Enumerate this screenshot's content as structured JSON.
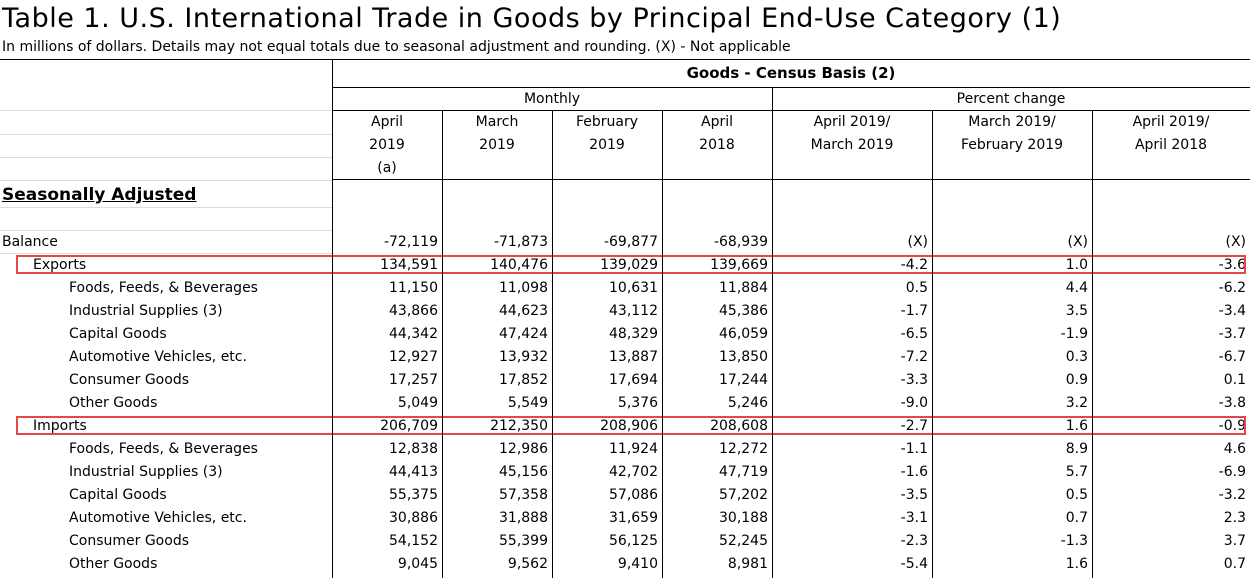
{
  "title": "Table 1. U.S. International Trade in Goods by Principal End-Use Category (1)",
  "subtitle": "In millions of dollars. Details may not equal totals due to seasonal adjustment and rounding. (X) - Not applicable",
  "header": {
    "group": "Goods - Census Basis (2)",
    "monthly": "Monthly",
    "percent_change": "Percent change",
    "columns": [
      {
        "l1": "April",
        "l2": "2019",
        "l3": "(a)"
      },
      {
        "l1": "March",
        "l2": "2019",
        "l3": ""
      },
      {
        "l1": "February",
        "l2": "2019",
        "l3": ""
      },
      {
        "l1": "April",
        "l2": "2018",
        "l3": ""
      },
      {
        "l1": "April 2019/",
        "l2": "March 2019",
        "l3": ""
      },
      {
        "l1": "March 2019/",
        "l2": "February 2019",
        "l3": ""
      },
      {
        "l1": "April 2019/",
        "l2": "April 2018",
        "l3": ""
      }
    ]
  },
  "section": "Seasonally Adjusted",
  "rows": [
    {
      "label": "Balance",
      "values": [
        "-72,119",
        "-71,873",
        "-69,877",
        "-68,939",
        "(X)",
        "(X)",
        "(X)"
      ]
    },
    {
      "label": "Exports",
      "values": [
        "134,591",
        "140,476",
        "139,029",
        "139,669",
        "-4.2",
        "1.0",
        "-3.6"
      ]
    },
    {
      "label": "Foods, Feeds, & Beverages",
      "values": [
        "11,150",
        "11,098",
        "10,631",
        "11,884",
        "0.5",
        "4.4",
        "-6.2"
      ]
    },
    {
      "label": "Industrial Supplies (3)",
      "values": [
        "43,866",
        "44,623",
        "43,112",
        "45,386",
        "-1.7",
        "3.5",
        "-3.4"
      ]
    },
    {
      "label": "Capital Goods",
      "values": [
        "44,342",
        "47,424",
        "48,329",
        "46,059",
        "-6.5",
        "-1.9",
        "-3.7"
      ]
    },
    {
      "label": "Automotive Vehicles, etc.",
      "values": [
        "12,927",
        "13,932",
        "13,887",
        "13,850",
        "-7.2",
        "0.3",
        "-6.7"
      ]
    },
    {
      "label": "Consumer Goods",
      "values": [
        "17,257",
        "17,852",
        "17,694",
        "17,244",
        "-3.3",
        "0.9",
        "0.1"
      ]
    },
    {
      "label": "Other Goods",
      "values": [
        "5,049",
        "5,549",
        "5,376",
        "5,246",
        "-9.0",
        "3.2",
        "-3.8"
      ]
    },
    {
      "label": "Imports",
      "values": [
        "206,709",
        "212,350",
        "208,906",
        "208,608",
        "-2.7",
        "1.6",
        "-0.9"
      ]
    },
    {
      "label": "Foods, Feeds, & Beverages",
      "values": [
        "12,838",
        "12,986",
        "11,924",
        "12,272",
        "-1.1",
        "8.9",
        "4.6"
      ]
    },
    {
      "label": "Industrial Supplies (3)",
      "values": [
        "44,413",
        "45,156",
        "42,702",
        "47,719",
        "-1.6",
        "5.7",
        "-6.9"
      ]
    },
    {
      "label": "Capital Goods",
      "values": [
        "55,375",
        "57,358",
        "57,086",
        "57,202",
        "-3.5",
        "0.5",
        "-3.2"
      ]
    },
    {
      "label": "Automotive Vehicles, etc.",
      "values": [
        "30,886",
        "31,888",
        "31,659",
        "30,188",
        "-3.1",
        "0.7",
        "2.3"
      ]
    },
    {
      "label": "Consumer Goods",
      "values": [
        "54,152",
        "55,399",
        "56,125",
        "52,245",
        "-2.3",
        "-1.3",
        "3.7"
      ]
    },
    {
      "label": "Other Goods",
      "values": [
        "9,045",
        "9,562",
        "9,410",
        "8,981",
        "-5.4",
        "1.6",
        "0.7"
      ]
    }
  ]
}
